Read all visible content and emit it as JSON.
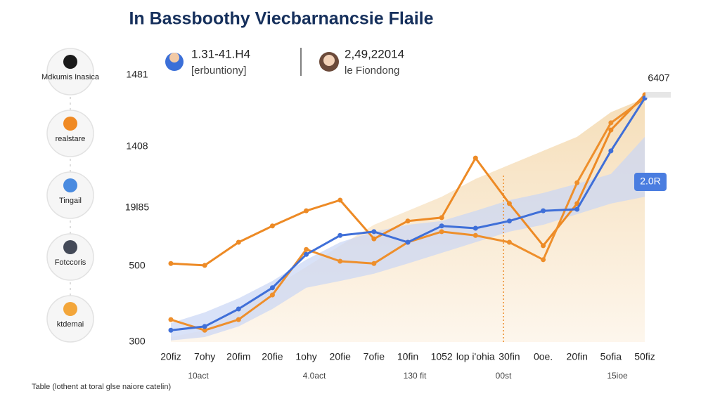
{
  "sidebar": [
    "Mdkumis Inasica",
    "realstare",
    "Tingail",
    "Fotccoris",
    "ktdemai"
  ],
  "headers": [
    {
      "value": "1.31-41.H4",
      "label": "[erbuntiony]"
    },
    {
      "value": "2,49,22014",
      "label": "le Fiondong"
    }
  ],
  "footer": "Table (lothent at toral glse naiore catelin)",
  "chart_data": {
    "type": "line",
    "title": "In Bassboothy Viecbarnancsie Flaile",
    "categories": [
      "20fiz",
      "7ohy",
      "20fim",
      "20fie",
      "1ohy",
      "20fie",
      "7ofie",
      "10fin",
      "1052",
      "lop i'ohia",
      "30fin",
      "0oe.",
      "20fin",
      "5ofia",
      "50fiz"
    ],
    "sublabels": [
      "10act",
      "4.0act",
      "130 fit",
      "00st",
      "15ioe"
    ],
    "ylim": [
      300,
      1050
    ],
    "yticks": [
      300,
      500,
      {
        "value": 654,
        "label": "19l85"
      },
      {
        "value": 815,
        "label": "1408"
      },
      {
        "value": 1004,
        "label": "1481"
      }
    ],
    "areas": [
      {
        "color": "#f7dfb8",
        "values": [
          313,
          331,
          387,
          443,
          498,
          554,
          609,
          646,
          683,
          730,
          767,
          804,
          841,
          906,
          943
        ]
      }
    ],
    "bands": [
      {
        "color": "#c9d5f5",
        "high": [
          350,
          378,
          415,
          461,
          517,
          563,
          591,
          609,
          619,
          646,
          674,
          693,
          717,
          743,
          841
        ],
        "low": [
          304,
          313,
          341,
          387,
          443,
          461,
          480,
          507,
          535,
          563,
          591,
          609,
          637,
          665,
          683
        ]
      }
    ],
    "series": [
      {
        "color": "#ed8a25",
        "values": [
          507,
          502,
          563,
          606,
          646,
          674,
          572,
          619,
          628,
          785,
          665,
          554,
          665,
          859,
          952
        ]
      },
      {
        "color": "#ee8f2c",
        "values": [
          359,
          331,
          359,
          424,
          544,
          513,
          507,
          563,
          591,
          581,
          563,
          517,
          720,
          878,
          943
        ]
      },
      {
        "color": "#3f6fd8",
        "values": [
          331,
          341,
          387,
          443,
          531,
          581,
          591,
          563,
          606,
          600,
          619,
          646,
          650,
          804,
          943
        ]
      }
    ],
    "annotations": [
      "6407",
      "2.0R"
    ]
  }
}
